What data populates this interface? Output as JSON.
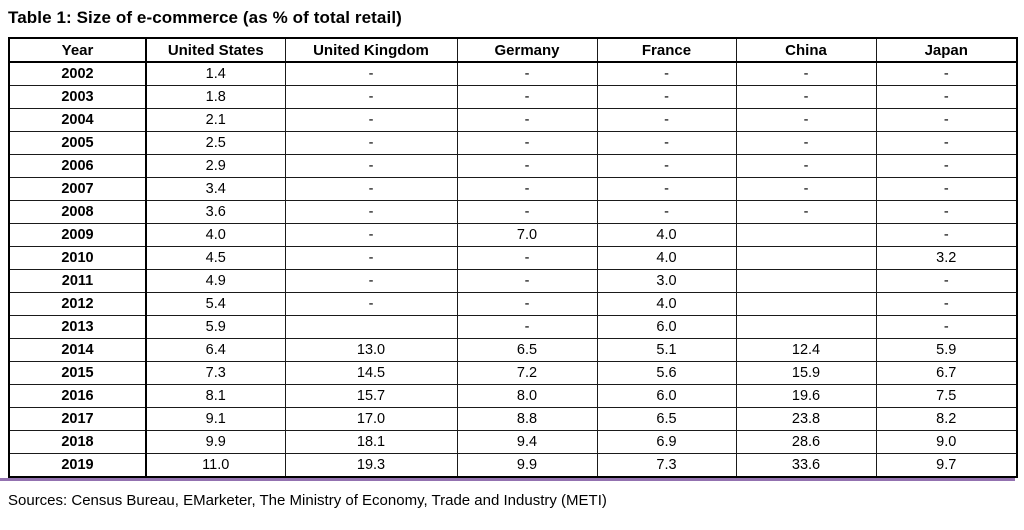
{
  "title": "Table 1: Size of e-commerce (as % of total retail)",
  "table": {
    "columns": [
      "Year",
      "United States",
      "United Kingdom",
      "Germany",
      "France",
      "China",
      "Japan"
    ],
    "rows": [
      {
        "year": "2002",
        "values": [
          "1.4",
          "-",
          "-",
          "-",
          "-",
          "-"
        ]
      },
      {
        "year": "2003",
        "values": [
          "1.8",
          "-",
          "-",
          "-",
          "-",
          "-"
        ]
      },
      {
        "year": "2004",
        "values": [
          "2.1",
          "-",
          "-",
          "-",
          "-",
          "-"
        ]
      },
      {
        "year": "2005",
        "values": [
          "2.5",
          "-",
          "-",
          "-",
          "-",
          "-"
        ]
      },
      {
        "year": "2006",
        "values": [
          "2.9",
          "-",
          "-",
          "-",
          "-",
          "-"
        ]
      },
      {
        "year": "2007",
        "values": [
          "3.4",
          "-",
          "-",
          "-",
          "-",
          "-"
        ]
      },
      {
        "year": "2008",
        "values": [
          "3.6",
          "-",
          "-",
          "-",
          "-",
          "-"
        ]
      },
      {
        "year": "2009",
        "values": [
          "4.0",
          "-",
          "7.0",
          "4.0",
          "",
          "-"
        ]
      },
      {
        "year": "2010",
        "values": [
          "4.5",
          "-",
          "-",
          "4.0",
          "",
          "3.2"
        ]
      },
      {
        "year": "2011",
        "values": [
          "4.9",
          "-",
          "-",
          "3.0",
          "",
          "-"
        ]
      },
      {
        "year": "2012",
        "values": [
          "5.4",
          "-",
          "-",
          "4.0",
          "",
          "-"
        ]
      },
      {
        "year": "2013",
        "values": [
          "5.9",
          "",
          "-",
          "6.0",
          "",
          "-"
        ]
      },
      {
        "year": "2014",
        "values": [
          "6.4",
          "13.0",
          "6.5",
          "5.1",
          "12.4",
          "5.9"
        ]
      },
      {
        "year": "2015",
        "values": [
          "7.3",
          "14.5",
          "7.2",
          "5.6",
          "15.9",
          "6.7"
        ]
      },
      {
        "year": "2016",
        "values": [
          "8.1",
          "15.7",
          "8.0",
          "6.0",
          "19.6",
          "7.5"
        ]
      },
      {
        "year": "2017",
        "values": [
          "9.1",
          "17.0",
          "8.8",
          "6.5",
          "23.8",
          "8.2"
        ]
      },
      {
        "year": "2018",
        "values": [
          "9.9",
          "18.1",
          "9.4",
          "6.9",
          "28.6",
          "9.0"
        ]
      },
      {
        "year": "2019",
        "values": [
          "11.0",
          "19.3",
          "9.9",
          "7.3",
          "33.6",
          "9.7"
        ]
      }
    ]
  },
  "footer": {
    "sources": "Sources: Census Bureau, EMarketer, The Ministry of Economy, Trade and Industry (METI)"
  },
  "colors": {
    "divider": "#9372b0",
    "border": "#000000",
    "text": "#000000",
    "background": "#ffffff"
  }
}
